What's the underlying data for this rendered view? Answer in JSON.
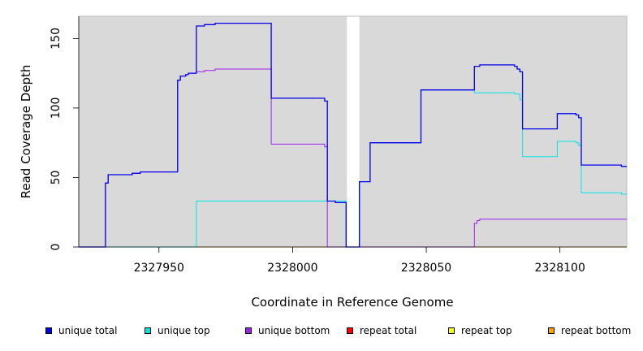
{
  "chart_data": {
    "type": "line",
    "xlabel": "Coordinate in Reference Genome",
    "ylabel": "Read Coverage Depth",
    "xlim": [
      2327920,
      2328125
    ],
    "ylim": [
      0,
      166
    ],
    "x_ticks": [
      2327950,
      2328000,
      2328050,
      2328100
    ],
    "y_ticks": [
      0,
      50,
      100,
      150
    ],
    "gap_region": [
      2328020,
      2328025
    ],
    "grid": false,
    "legend_position": "bottom",
    "series": [
      {
        "name": "unique total",
        "color": "#0000ee",
        "points": [
          [
            2327920,
            0
          ],
          [
            2327930,
            0
          ],
          [
            2327930,
            46
          ],
          [
            2327931,
            46
          ],
          [
            2327931,
            52
          ],
          [
            2327940,
            52
          ],
          [
            2327940,
            53
          ],
          [
            2327943,
            53
          ],
          [
            2327943,
            54
          ],
          [
            2327957,
            54
          ],
          [
            2327957,
            120
          ],
          [
            2327958,
            120
          ],
          [
            2327958,
            123
          ],
          [
            2327960,
            123
          ],
          [
            2327960,
            124
          ],
          [
            2327961,
            124
          ],
          [
            2327961,
            125
          ],
          [
            2327964,
            125
          ],
          [
            2327964,
            159
          ],
          [
            2327967,
            159
          ],
          [
            2327967,
            160
          ],
          [
            2327971,
            160
          ],
          [
            2327971,
            161
          ],
          [
            2327992,
            161
          ],
          [
            2327992,
            107
          ],
          [
            2328012,
            107
          ],
          [
            2328012,
            105
          ],
          [
            2328013,
            105
          ],
          [
            2328013,
            33
          ],
          [
            2328016,
            33
          ],
          [
            2328016,
            32
          ],
          [
            2328020,
            32
          ],
          [
            2328020,
            0
          ],
          [
            2328025,
            0
          ],
          [
            2328025,
            47
          ],
          [
            2328029,
            47
          ],
          [
            2328029,
            75
          ],
          [
            2328048,
            75
          ],
          [
            2328048,
            113
          ],
          [
            2328068,
            113
          ],
          [
            2328068,
            130
          ],
          [
            2328070,
            130
          ],
          [
            2328070,
            131
          ],
          [
            2328083,
            131
          ],
          [
            2328083,
            130
          ],
          [
            2328084,
            130
          ],
          [
            2328084,
            128
          ],
          [
            2328085,
            128
          ],
          [
            2328085,
            126
          ],
          [
            2328086,
            126
          ],
          [
            2328086,
            85
          ],
          [
            2328099,
            85
          ],
          [
            2328099,
            96
          ],
          [
            2328106,
            96
          ],
          [
            2328106,
            95
          ],
          [
            2328107,
            95
          ],
          [
            2328107,
            93
          ],
          [
            2328108,
            93
          ],
          [
            2328108,
            59
          ],
          [
            2328123,
            59
          ],
          [
            2328123,
            58
          ],
          [
            2328125,
            58
          ]
        ]
      },
      {
        "name": "unique top",
        "color": "#00e5e5",
        "points": [
          [
            2327920,
            0
          ],
          [
            2327964,
            0
          ],
          [
            2327964,
            33
          ],
          [
            2328020,
            33
          ],
          [
            2328020,
            0
          ],
          [
            2328025,
            0
          ],
          [
            2328025,
            47
          ],
          [
            2328029,
            47
          ],
          [
            2328029,
            75
          ],
          [
            2328048,
            75
          ],
          [
            2328048,
            113
          ],
          [
            2328068,
            113
          ],
          [
            2328068,
            111
          ],
          [
            2328083,
            111
          ],
          [
            2328083,
            110
          ],
          [
            2328085,
            110
          ],
          [
            2328085,
            106
          ],
          [
            2328086,
            106
          ],
          [
            2328086,
            65
          ],
          [
            2328099,
            65
          ],
          [
            2328099,
            76
          ],
          [
            2328106,
            76
          ],
          [
            2328106,
            75
          ],
          [
            2328107,
            75
          ],
          [
            2328107,
            73
          ],
          [
            2328108,
            73
          ],
          [
            2328108,
            39
          ],
          [
            2328123,
            39
          ],
          [
            2328123,
            38
          ],
          [
            2328125,
            38
          ]
        ]
      },
      {
        "name": "unique bottom",
        "color": "#a020f0",
        "points": [
          [
            2327920,
            0
          ],
          [
            2327930,
            0
          ],
          [
            2327930,
            46
          ],
          [
            2327931,
            46
          ],
          [
            2327931,
            52
          ],
          [
            2327940,
            52
          ],
          [
            2327940,
            53
          ],
          [
            2327943,
            53
          ],
          [
            2327943,
            54
          ],
          [
            2327957,
            54
          ],
          [
            2327957,
            120
          ],
          [
            2327958,
            120
          ],
          [
            2327958,
            123
          ],
          [
            2327960,
            123
          ],
          [
            2327960,
            124
          ],
          [
            2327961,
            124
          ],
          [
            2327961,
            125
          ],
          [
            2327964,
            125
          ],
          [
            2327964,
            126
          ],
          [
            2327967,
            126
          ],
          [
            2327967,
            127
          ],
          [
            2327971,
            127
          ],
          [
            2327971,
            128
          ],
          [
            2327992,
            128
          ],
          [
            2327992,
            74
          ],
          [
            2328012,
            74
          ],
          [
            2328012,
            72
          ],
          [
            2328013,
            72
          ],
          [
            2328013,
            0
          ],
          [
            2328068,
            0
          ],
          [
            2328068,
            17
          ],
          [
            2328069,
            17
          ],
          [
            2328069,
            19
          ],
          [
            2328070,
            19
          ],
          [
            2328070,
            20
          ],
          [
            2328125,
            20
          ]
        ]
      },
      {
        "name": "repeat total",
        "color": "#ff0000",
        "points": [
          [
            2327920,
            0
          ],
          [
            2328125,
            0
          ]
        ]
      },
      {
        "name": "repeat top",
        "color": "#ffff00",
        "points": [
          [
            2327920,
            0
          ],
          [
            2328125,
            0
          ]
        ]
      },
      {
        "name": "repeat bottom",
        "color": "#ffa500",
        "points": [
          [
            2327920,
            0
          ],
          [
            2328125,
            0
          ]
        ]
      }
    ]
  }
}
